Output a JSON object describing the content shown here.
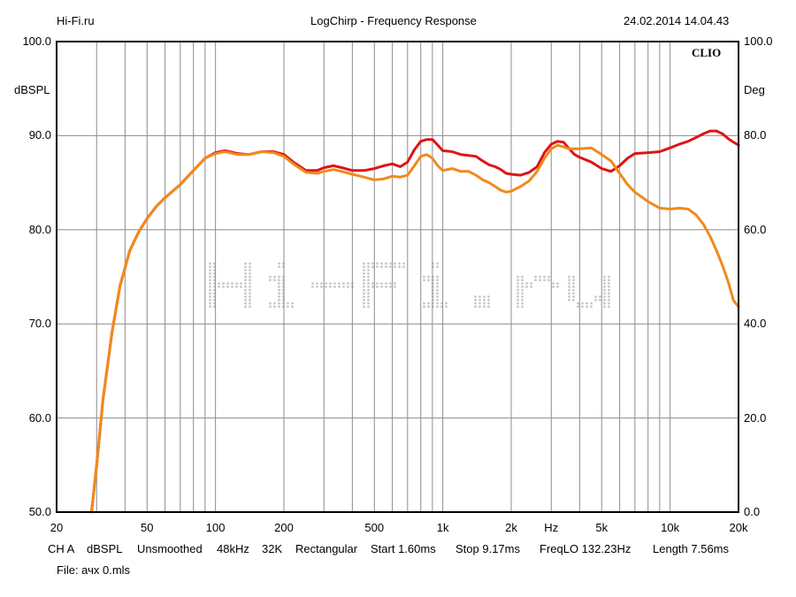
{
  "header": {
    "left": "Hi-Fi.ru",
    "title": "LogChirp - Frequency Response",
    "datetime": "24.02.2014 14.04.43"
  },
  "brand": "CLIO",
  "watermark": "Hi-Fi.ru",
  "footer": {
    "ch": "CH A",
    "unit": "dBSPL",
    "smoothing": "Unsmoothed",
    "rate": "48kHz",
    "size": "32K",
    "window": "Rectangular",
    "start": "Start 1.60ms",
    "stop": "Stop 9.17ms",
    "freqlo": "FreqLO 132.23Hz",
    "length": "Length 7.56ms",
    "file": "File: ачх 0.mls"
  },
  "colors": {
    "background": "#ffffff",
    "grid": "#8c8c8c",
    "frame": "#000000",
    "series_red": "#dd1515",
    "series_orange": "#f08a1c",
    "watermark": "#c8c8c8"
  },
  "chart_data": {
    "type": "line",
    "title": "LogChirp - Frequency Response",
    "xlabel": "Hz",
    "ylabel": "dBSPL",
    "ylabel_right": "Deg",
    "xscale": "log",
    "xlim": [
      20,
      20000
    ],
    "ylim": [
      50,
      100
    ],
    "ylim_right": [
      0,
      100
    ],
    "grid": true,
    "x_ticks": [
      {
        "value": 20,
        "label": "20"
      },
      {
        "value": 50,
        "label": "50"
      },
      {
        "value": 100,
        "label": "100"
      },
      {
        "value": 200,
        "label": "200"
      },
      {
        "value": 500,
        "label": "500"
      },
      {
        "value": 1000,
        "label": "1k"
      },
      {
        "value": 2000,
        "label": "2k"
      },
      {
        "value": 5000,
        "label": "5k"
      },
      {
        "value": 10000,
        "label": "10k"
      },
      {
        "value": 20000,
        "label": "20k"
      }
    ],
    "y_ticks": [
      "50.0",
      "60.0",
      "70.0",
      "80.0",
      "90.0",
      "100.0"
    ],
    "y_ticks_right": [
      "0.0",
      "20.0",
      "40.0",
      "60.0",
      "80.0",
      "100.0"
    ],
    "series": [
      {
        "color": "#dd1515",
        "x": [
          28.5,
          30,
          32,
          35,
          38,
          42,
          46,
          50,
          55,
          60,
          70,
          80,
          90,
          100,
          110,
          125,
          140,
          160,
          180,
          200,
          220,
          250,
          280,
          300,
          330,
          360,
          400,
          450,
          500,
          550,
          600,
          650,
          700,
          750,
          800,
          850,
          900,
          950,
          1000,
          1100,
          1200,
          1300,
          1400,
          1500,
          1600,
          1700,
          1800,
          1900,
          2000,
          2200,
          2400,
          2600,
          2800,
          3000,
          3200,
          3400,
          3600,
          3800,
          4000,
          4500,
          5000,
          5500,
          6000,
          6500,
          7000,
          8000,
          9000,
          10000,
          11000,
          12000,
          13000,
          14000,
          15000,
          16000,
          17000,
          18000,
          19000,
          20000
        ],
        "y": [
          50.0,
          55.0,
          62.0,
          69.0,
          74.0,
          77.8,
          79.8,
          81.2,
          82.5,
          83.4,
          84.8,
          86.3,
          87.6,
          88.2,
          88.4,
          88.1,
          88.0,
          88.3,
          88.3,
          88.0,
          87.2,
          86.3,
          86.3,
          86.6,
          86.8,
          86.6,
          86.3,
          86.3,
          86.5,
          86.8,
          87.0,
          86.7,
          87.2,
          88.5,
          89.4,
          89.6,
          89.6,
          89.0,
          88.4,
          88.3,
          88.0,
          87.9,
          87.8,
          87.3,
          86.9,
          86.7,
          86.4,
          86.0,
          85.9,
          85.8,
          86.1,
          86.7,
          88.2,
          89.1,
          89.4,
          89.3,
          88.6,
          88.0,
          87.7,
          87.2,
          86.5,
          86.2,
          86.8,
          87.6,
          88.1,
          88.2,
          88.3,
          88.7,
          89.1,
          89.4,
          89.8,
          90.2,
          90.5,
          90.5,
          90.2,
          89.7,
          89.3,
          89.0
        ]
      },
      {
        "color": "#f08a1c",
        "x": [
          28.5,
          30,
          32,
          35,
          38,
          42,
          46,
          50,
          55,
          60,
          70,
          80,
          90,
          100,
          110,
          125,
          140,
          160,
          180,
          200,
          220,
          250,
          280,
          300,
          330,
          360,
          400,
          450,
          500,
          550,
          600,
          650,
          700,
          750,
          800,
          850,
          900,
          950,
          1000,
          1100,
          1200,
          1300,
          1400,
          1500,
          1600,
          1700,
          1800,
          1900,
          2000,
          2200,
          2400,
          2600,
          2800,
          3000,
          3200,
          3400,
          3600,
          3800,
          4000,
          4500,
          5000,
          5500,
          6000,
          6500,
          7000,
          8000,
          9000,
          10000,
          11000,
          12000,
          13000,
          14000,
          15000,
          16000,
          17000,
          18000,
          19000,
          20000
        ],
        "y": [
          50.0,
          55.0,
          62.0,
          69.0,
          74.0,
          77.8,
          79.8,
          81.2,
          82.5,
          83.4,
          84.8,
          86.3,
          87.6,
          88.1,
          88.3,
          88.0,
          88.0,
          88.3,
          88.2,
          87.8,
          87.0,
          86.1,
          86.0,
          86.2,
          86.4,
          86.2,
          85.9,
          85.6,
          85.3,
          85.4,
          85.7,
          85.6,
          85.8,
          86.8,
          87.8,
          88.0,
          87.6,
          86.8,
          86.3,
          86.5,
          86.2,
          86.2,
          85.8,
          85.3,
          85.0,
          84.6,
          84.2,
          84.0,
          84.1,
          84.6,
          85.2,
          86.2,
          87.6,
          88.6,
          89.0,
          88.8,
          88.6,
          88.6,
          88.6,
          88.7,
          88.0,
          87.3,
          86.0,
          84.8,
          84.0,
          83.0,
          82.3,
          82.2,
          82.3,
          82.2,
          81.6,
          80.6,
          79.3,
          77.8,
          76.2,
          74.5,
          72.5,
          71.8
        ]
      }
    ]
  }
}
